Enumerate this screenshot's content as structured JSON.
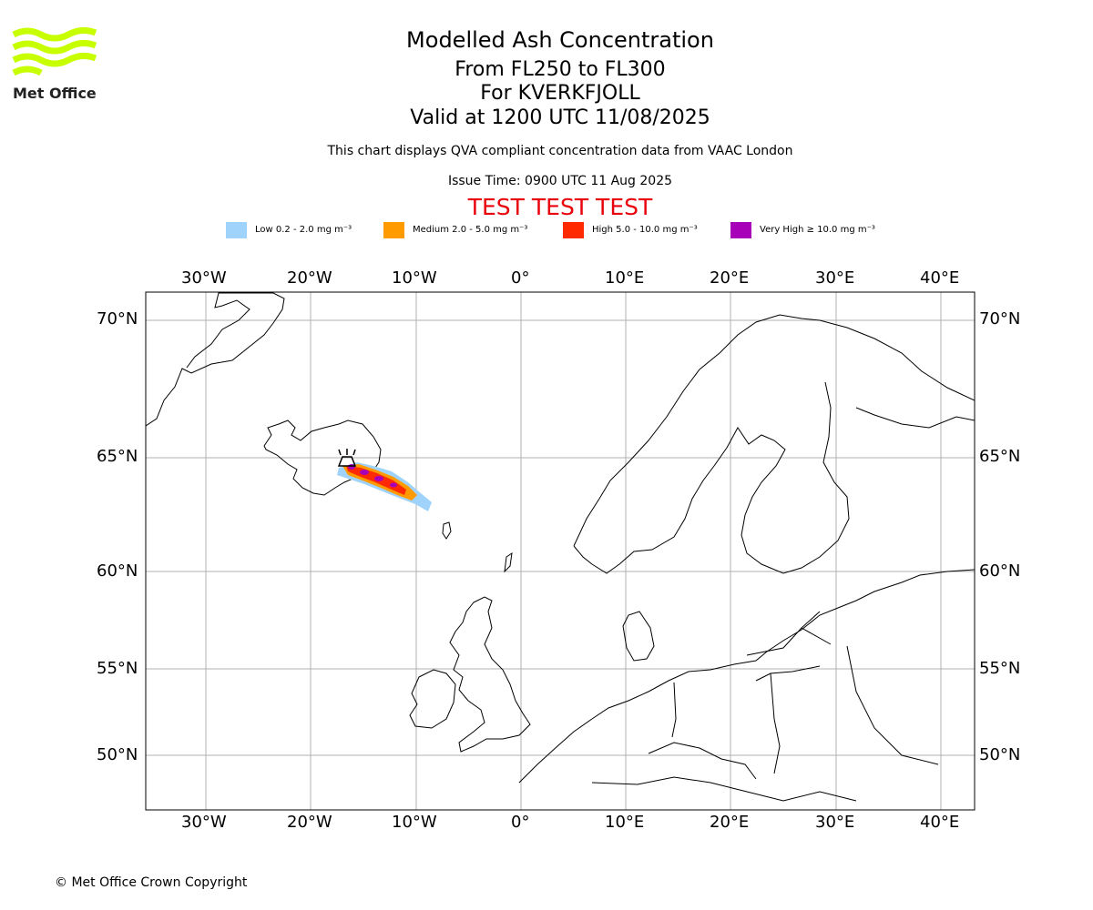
{
  "header": {
    "title": "Modelled Ash Concentration",
    "levels": "From FL250 to FL300",
    "volcano": "For KVERKFJOLL",
    "valid": "Valid at 1200 UTC 11/08/2025",
    "description": "This chart displays QVA compliant concentration data from VAAC London",
    "issue_time": "Issue Time: 0900 UTC 11 Aug 2025",
    "test_banner": "TEST TEST TEST"
  },
  "logo": {
    "text": "Met Office",
    "color": "#c8ff00"
  },
  "legend": [
    {
      "label": "Low 0.2 - 2.0 mg m⁻³",
      "color": "#a0d3fb"
    },
    {
      "label": "Medium 2.0 - 5.0 mg m⁻³",
      "color": "#ff9a00"
    },
    {
      "label": "High 5.0 - 10.0 mg m⁻³",
      "color": "#ff2a00"
    },
    {
      "label": "Very High  ≥  10.0 mg m⁻³",
      "color": "#a800b8"
    }
  ],
  "axes": {
    "lon_labels": [
      "30°W",
      "20°W",
      "10°W",
      "0°",
      "10°E",
      "20°E",
      "30°E",
      "40°E"
    ],
    "lat_labels": [
      "70°N",
      "65°N",
      "60°N",
      "55°N",
      "50°N"
    ]
  },
  "footer": {
    "copyright": "© Met Office Crown Copyright"
  }
}
